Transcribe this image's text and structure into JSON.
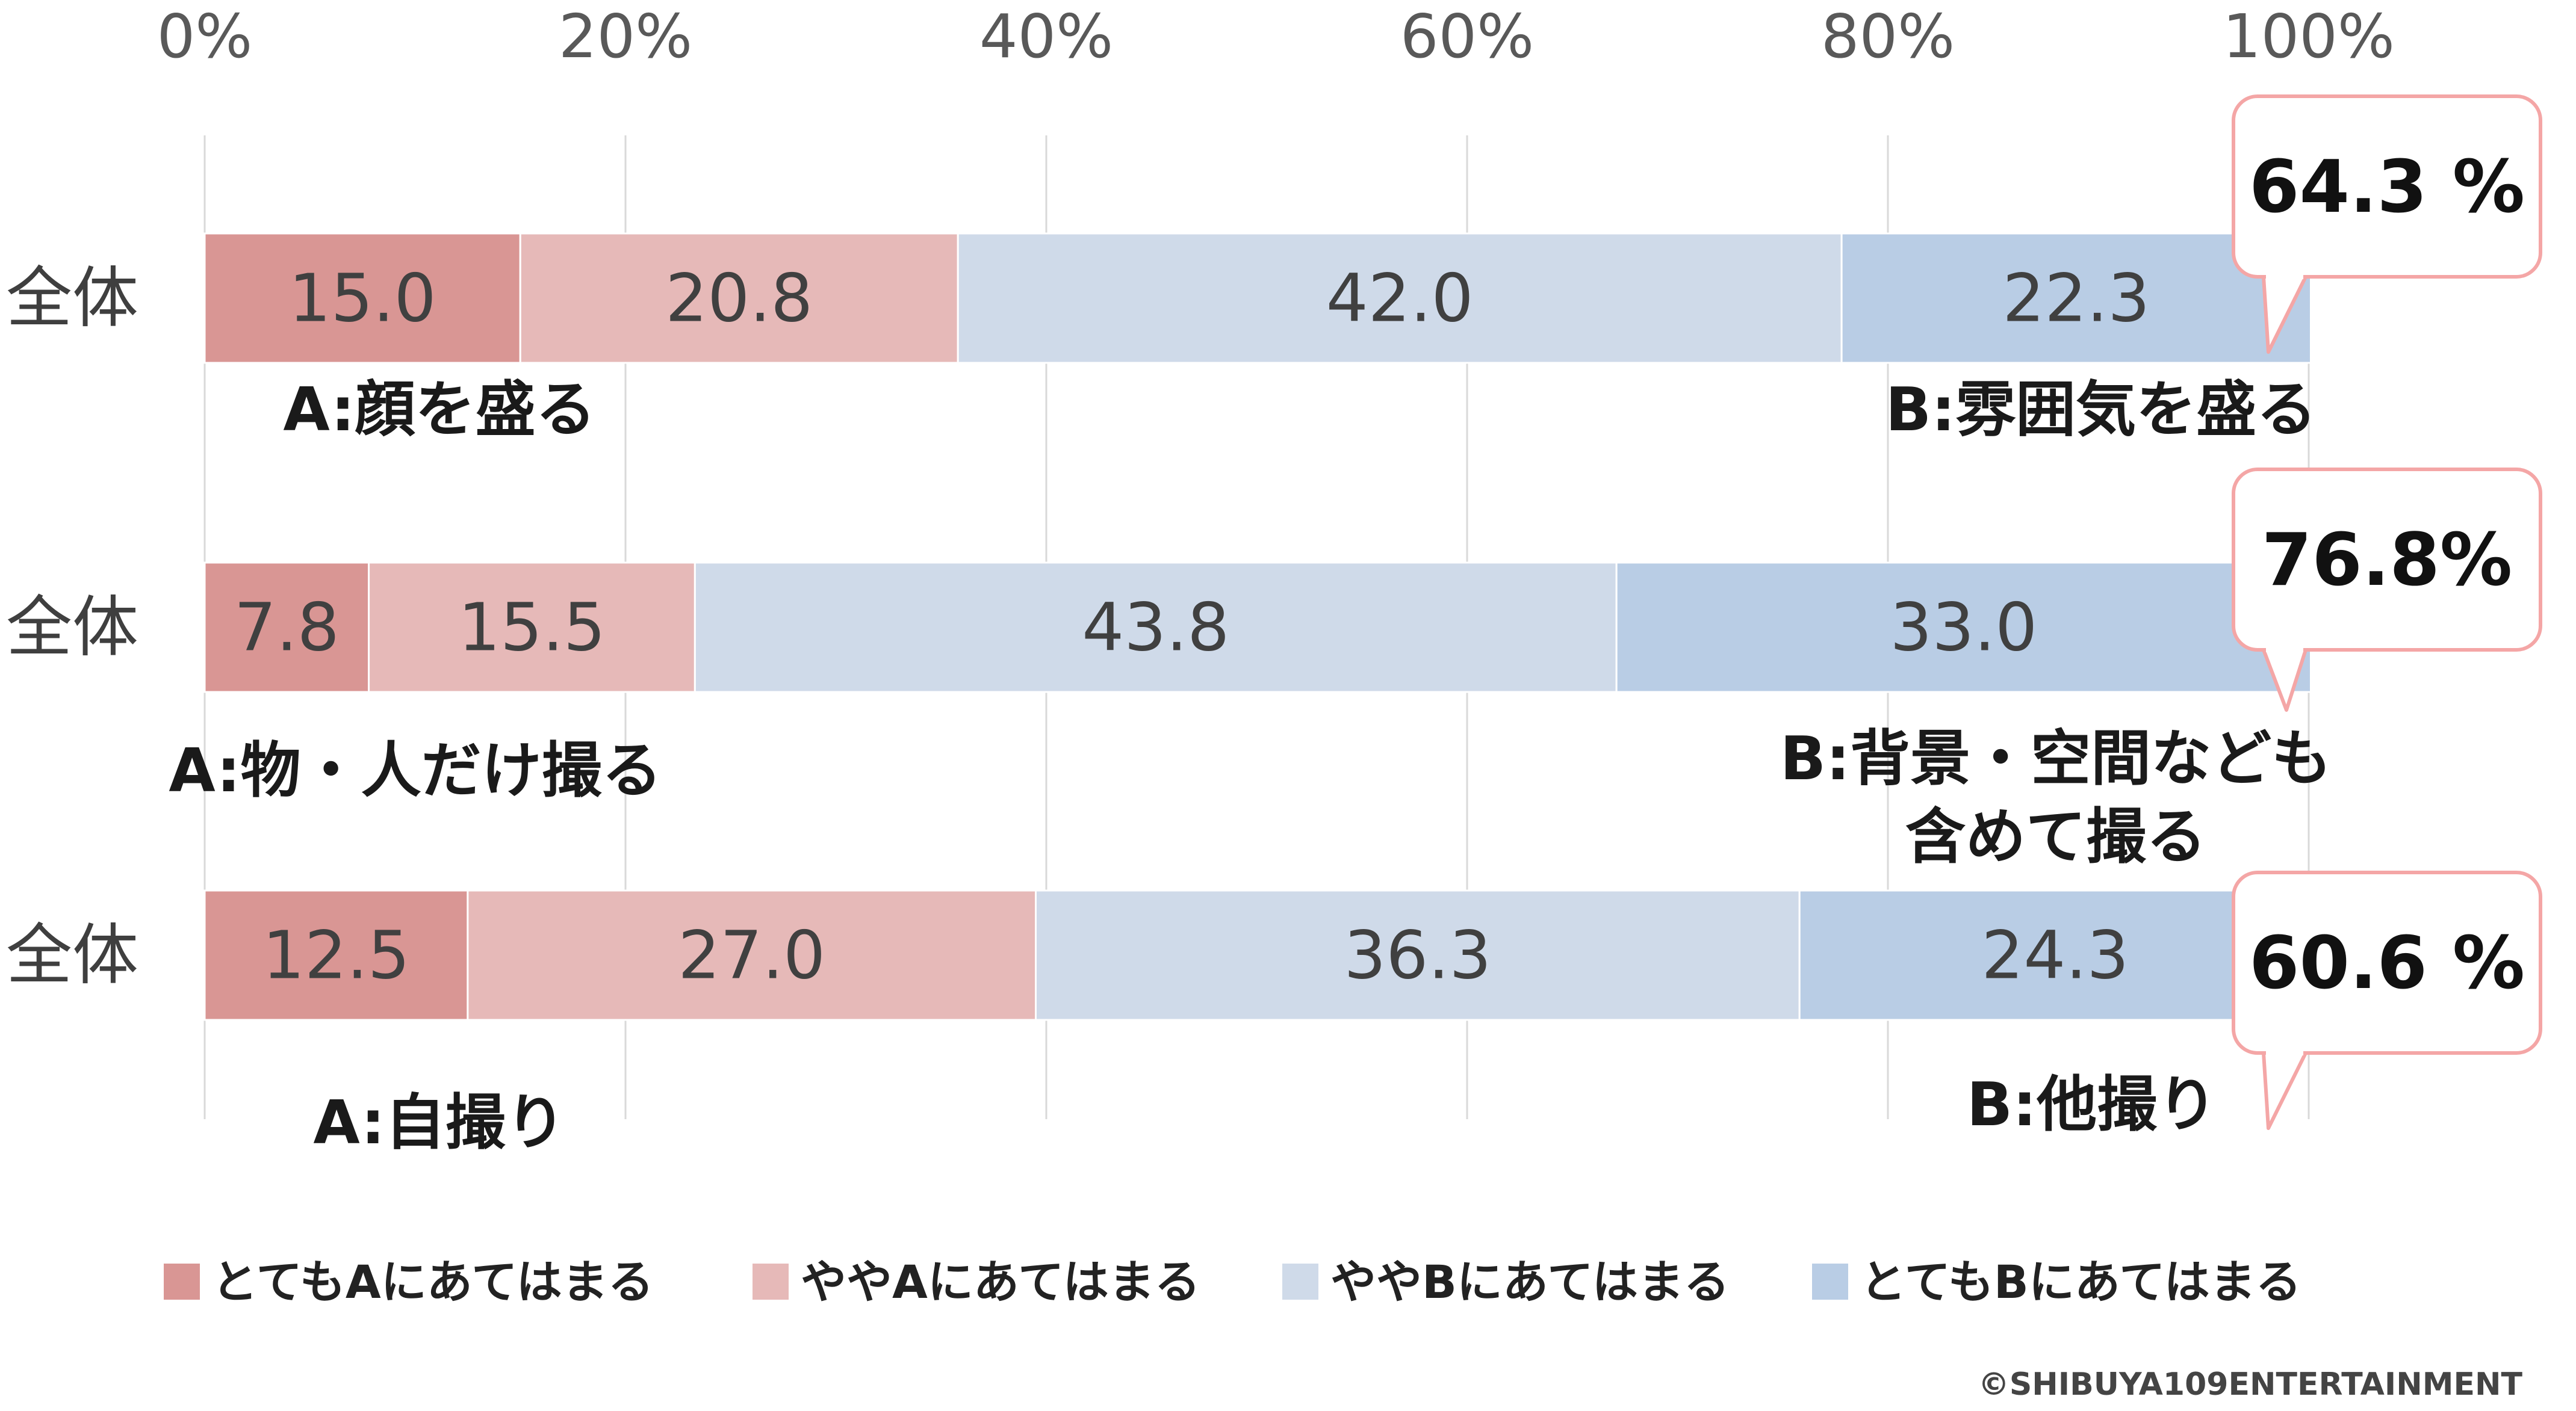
{
  "chart_data": {
    "type": "bar",
    "orientation": "horizontal",
    "stacked": "percent",
    "xlim": [
      0,
      100
    ],
    "x_ticks": [
      "0%",
      "20%",
      "40%",
      "60%",
      "80%",
      "100%"
    ],
    "grid": true,
    "legend_position": "bottom",
    "categories": [
      "全体",
      "全体",
      "全体"
    ],
    "series": [
      {
        "name": "とてもAにあてはまる",
        "color": "#d99694",
        "values": [
          15.0,
          7.8,
          12.5
        ]
      },
      {
        "name": "ややAにあてはまる",
        "color": "#e6b9b8",
        "values": [
          20.8,
          15.5,
          27.0
        ]
      },
      {
        "name": "ややBにあてはまる",
        "color": "#cfdae9",
        "values": [
          42.0,
          43.8,
          36.3
        ]
      },
      {
        "name": "とてもBにあてはまる",
        "color": "#b9cde5",
        "values": [
          22.3,
          33.0,
          24.3
        ]
      }
    ],
    "value_labels": [
      [
        "15.0",
        "20.8",
        "42.0",
        "22.3"
      ],
      [
        "7.8",
        "15.5",
        "43.8",
        "33.0"
      ],
      [
        "12.5",
        "27.0",
        "36.3",
        "24.3"
      ]
    ],
    "a_labels": [
      [
        "A:顔を盛る"
      ],
      [
        "A:物・人だけ撮る"
      ],
      [
        "A:自撮り"
      ]
    ],
    "b_labels": [
      [
        "B:雰囲気を盛る"
      ],
      [
        "B:背景・空間なども",
        "含めて撮る"
      ],
      [
        "B:他撮り"
      ]
    ],
    "callouts": [
      "64.3 %",
      "76.8%",
      "60.6 %"
    ]
  },
  "credit": "©SHIBUYA109ENTERTAINMENT",
  "colors": {
    "grid": "#d9d9d9",
    "callout_border": "#f4a6a6"
  }
}
